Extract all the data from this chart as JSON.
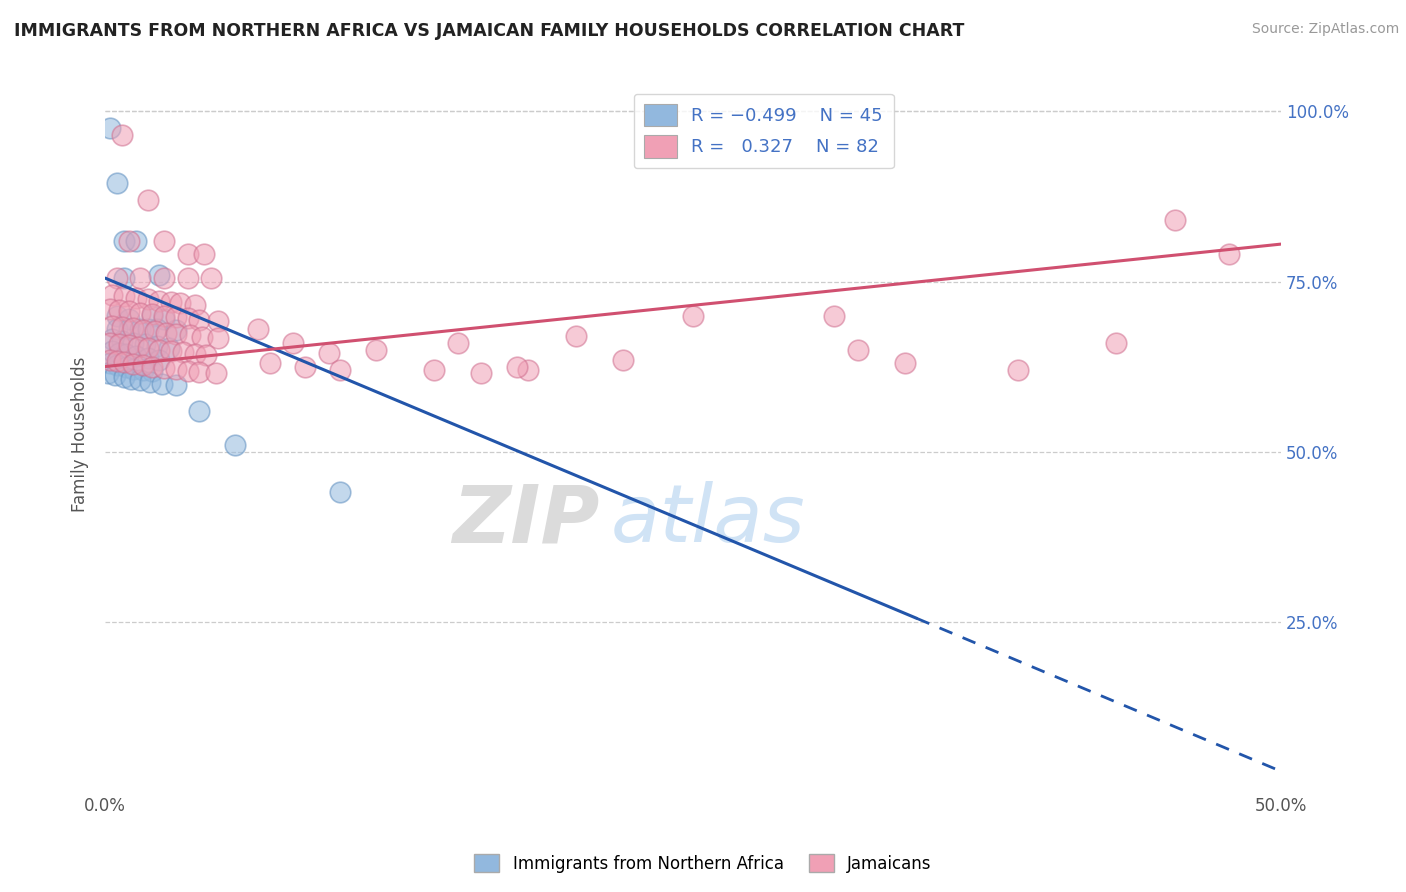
{
  "title": "IMMIGRANTS FROM NORTHERN AFRICA VS JAMAICAN FAMILY HOUSEHOLDS CORRELATION CHART",
  "source": "Source: ZipAtlas.com",
  "ylabel": "Family Households",
  "watermark": "ZIPatlas",
  "blue_color": "#92b8de",
  "pink_color": "#f0a0b5",
  "blue_edge_color": "#6090c0",
  "pink_edge_color": "#d07090",
  "blue_line_color": "#2255aa",
  "pink_line_color": "#d05070",
  "blue_line_solid": [
    [
      0.0,
      0.755
    ],
    [
      0.345,
      0.255
    ]
  ],
  "blue_line_dashed": [
    [
      0.345,
      0.255
    ],
    [
      0.5,
      0.03
    ]
  ],
  "pink_line": [
    [
      0.0,
      0.625
    ],
    [
      0.5,
      0.805
    ]
  ],
  "blue_scatter": [
    [
      0.002,
      0.975
    ],
    [
      0.005,
      0.895
    ],
    [
      0.008,
      0.81
    ],
    [
      0.013,
      0.81
    ],
    [
      0.008,
      0.755
    ],
    [
      0.023,
      0.76
    ],
    [
      0.005,
      0.7
    ],
    [
      0.02,
      0.7
    ],
    [
      0.01,
      0.695
    ],
    [
      0.025,
      0.695
    ],
    [
      0.005,
      0.68
    ],
    [
      0.01,
      0.68
    ],
    [
      0.015,
      0.68
    ],
    [
      0.018,
      0.68
    ],
    [
      0.022,
      0.68
    ],
    [
      0.03,
      0.678
    ],
    [
      0.003,
      0.665
    ],
    [
      0.007,
      0.662
    ],
    [
      0.012,
      0.66
    ],
    [
      0.017,
      0.658
    ],
    [
      0.022,
      0.655
    ],
    [
      0.027,
      0.652
    ],
    [
      0.003,
      0.648
    ],
    [
      0.006,
      0.645
    ],
    [
      0.009,
      0.643
    ],
    [
      0.013,
      0.64
    ],
    [
      0.018,
      0.638
    ],
    [
      0.023,
      0.635
    ],
    [
      0.002,
      0.63
    ],
    [
      0.005,
      0.628
    ],
    [
      0.009,
      0.625
    ],
    [
      0.012,
      0.622
    ],
    [
      0.016,
      0.62
    ],
    [
      0.02,
      0.618
    ],
    [
      0.001,
      0.615
    ],
    [
      0.004,
      0.612
    ],
    [
      0.008,
      0.61
    ],
    [
      0.011,
      0.607
    ],
    [
      0.015,
      0.605
    ],
    [
      0.019,
      0.602
    ],
    [
      0.024,
      0.6
    ],
    [
      0.03,
      0.598
    ],
    [
      0.04,
      0.56
    ],
    [
      0.055,
      0.51
    ],
    [
      0.1,
      0.44
    ]
  ],
  "pink_scatter": [
    [
      0.007,
      0.965
    ],
    [
      0.018,
      0.87
    ],
    [
      0.01,
      0.81
    ],
    [
      0.025,
      0.81
    ],
    [
      0.035,
      0.79
    ],
    [
      0.042,
      0.79
    ],
    [
      0.005,
      0.755
    ],
    [
      0.015,
      0.755
    ],
    [
      0.025,
      0.755
    ],
    [
      0.035,
      0.755
    ],
    [
      0.045,
      0.755
    ],
    [
      0.478,
      0.79
    ],
    [
      0.003,
      0.73
    ],
    [
      0.008,
      0.728
    ],
    [
      0.013,
      0.726
    ],
    [
      0.018,
      0.724
    ],
    [
      0.023,
      0.722
    ],
    [
      0.028,
      0.72
    ],
    [
      0.032,
      0.718
    ],
    [
      0.038,
      0.716
    ],
    [
      0.002,
      0.71
    ],
    [
      0.006,
      0.708
    ],
    [
      0.01,
      0.706
    ],
    [
      0.015,
      0.704
    ],
    [
      0.02,
      0.702
    ],
    [
      0.025,
      0.7
    ],
    [
      0.03,
      0.698
    ],
    [
      0.035,
      0.696
    ],
    [
      0.04,
      0.694
    ],
    [
      0.048,
      0.692
    ],
    [
      0.003,
      0.685
    ],
    [
      0.007,
      0.683
    ],
    [
      0.012,
      0.681
    ],
    [
      0.016,
      0.679
    ],
    [
      0.021,
      0.677
    ],
    [
      0.026,
      0.675
    ],
    [
      0.03,
      0.673
    ],
    [
      0.036,
      0.671
    ],
    [
      0.041,
      0.669
    ],
    [
      0.048,
      0.667
    ],
    [
      0.002,
      0.66
    ],
    [
      0.006,
      0.658
    ],
    [
      0.01,
      0.656
    ],
    [
      0.014,
      0.654
    ],
    [
      0.018,
      0.652
    ],
    [
      0.023,
      0.65
    ],
    [
      0.028,
      0.648
    ],
    [
      0.033,
      0.646
    ],
    [
      0.038,
      0.644
    ],
    [
      0.043,
      0.642
    ],
    [
      0.002,
      0.635
    ],
    [
      0.005,
      0.633
    ],
    [
      0.008,
      0.631
    ],
    [
      0.012,
      0.629
    ],
    [
      0.016,
      0.627
    ],
    [
      0.02,
      0.625
    ],
    [
      0.025,
      0.623
    ],
    [
      0.03,
      0.621
    ],
    [
      0.035,
      0.619
    ],
    [
      0.04,
      0.617
    ],
    [
      0.047,
      0.615
    ],
    [
      0.065,
      0.68
    ],
    [
      0.08,
      0.66
    ],
    [
      0.095,
      0.645
    ],
    [
      0.115,
      0.65
    ],
    [
      0.15,
      0.66
    ],
    [
      0.2,
      0.67
    ],
    [
      0.25,
      0.7
    ],
    [
      0.31,
      0.7
    ],
    [
      0.32,
      0.65
    ],
    [
      0.34,
      0.63
    ],
    [
      0.388,
      0.62
    ],
    [
      0.43,
      0.66
    ],
    [
      0.455,
      0.84
    ],
    [
      0.18,
      0.62
    ],
    [
      0.16,
      0.615
    ],
    [
      0.07,
      0.63
    ],
    [
      0.085,
      0.625
    ],
    [
      0.1,
      0.62
    ],
    [
      0.14,
      0.62
    ],
    [
      0.175,
      0.625
    ],
    [
      0.22,
      0.635
    ]
  ],
  "xlim": [
    0.0,
    0.5
  ],
  "ylim": [
    0.0,
    1.05
  ],
  "yticks": [
    0.25,
    0.5,
    0.75,
    1.0
  ],
  "ytick_labels": [
    "25.0%",
    "50.0%",
    "75.0%",
    "100.0%"
  ],
  "xticks": [
    0.0,
    0.1,
    0.2,
    0.3,
    0.4,
    0.5
  ],
  "xtick_labels": [
    "0.0%",
    "",
    "",
    "",
    "",
    "50.0%"
  ],
  "grid_color": "#cccccc",
  "background_color": "#ffffff"
}
